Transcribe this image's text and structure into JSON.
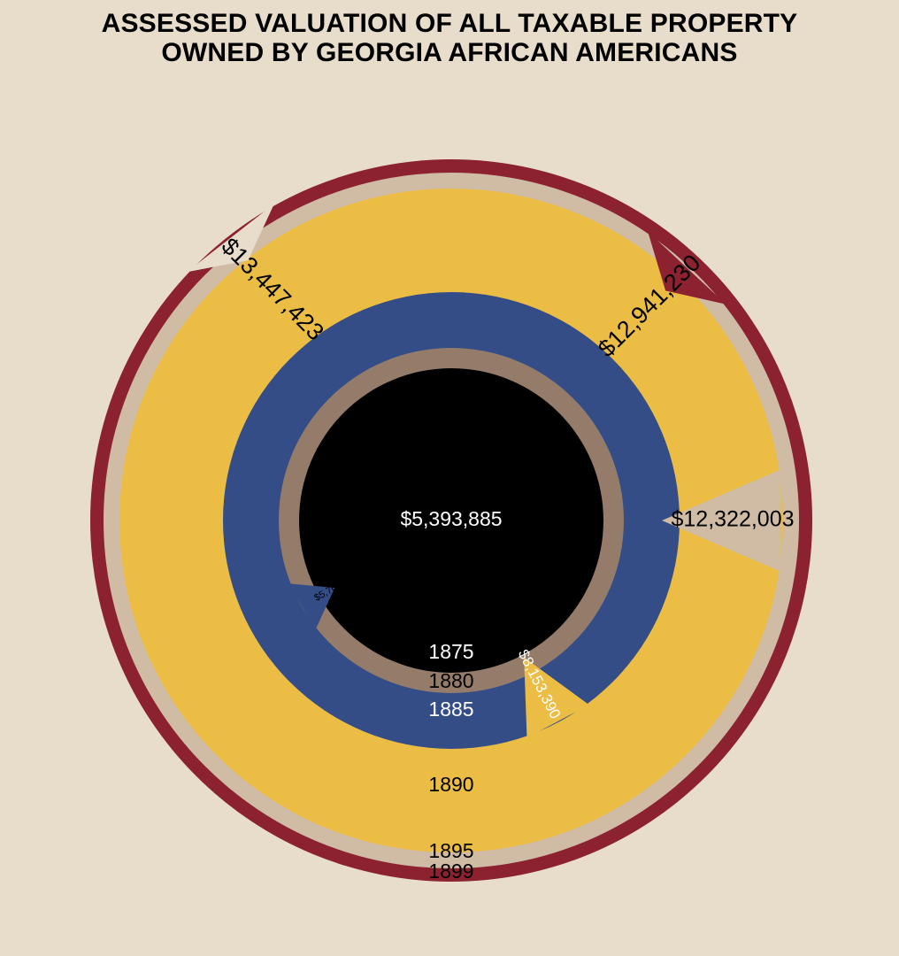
{
  "chart_data": {
    "type": "radial-bar",
    "title_lines": [
      "ASSESSED VALUATION OF ALL TAXABLE PROPERTY",
      "OWNED BY GEORGIA AFRICAN AMERICANS"
    ],
    "center_label": "$5,393,885",
    "series": [
      {
        "year": "1875",
        "value": 5393885,
        "label": "$5,393,885",
        "color": "#000000"
      },
      {
        "year": "1880",
        "value": 5764293,
        "label": "$5,764,293",
        "color": "#957c6a"
      },
      {
        "year": "1885",
        "value": 8153390,
        "label": "$8,153,390",
        "color": "#344d87"
      },
      {
        "year": "1890",
        "value": 12322003,
        "label": "$12,322,003",
        "color": "#ebbd45"
      },
      {
        "year": "1895",
        "value": 12941230,
        "label": "$12,941,230",
        "color": "#d0bba5"
      },
      {
        "year": "1899",
        "value": 13447423,
        "label": "$13,447,423",
        "color": "#8c2130"
      }
    ],
    "background": "#e8dccb",
    "notch_color": "#e8dccb"
  }
}
